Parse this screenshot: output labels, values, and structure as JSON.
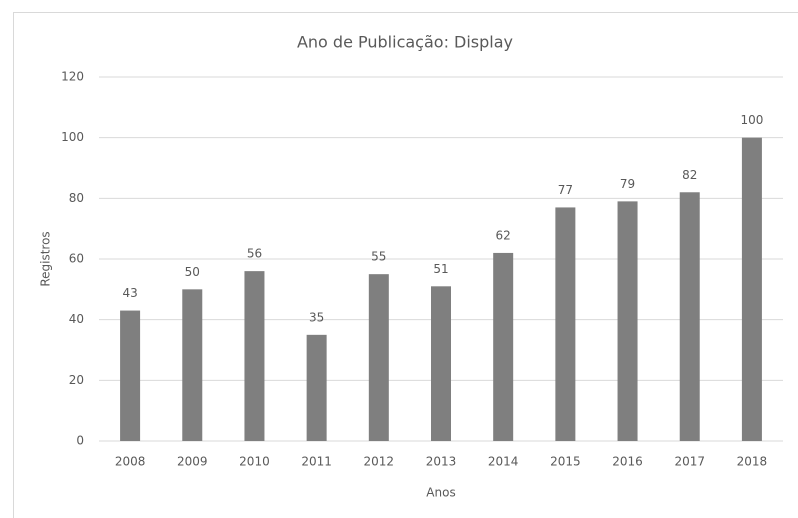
{
  "chart_data": {
    "type": "bar",
    "title": "Ano de Publicação: Display",
    "x_label": "Anos",
    "y_label": "Registros",
    "categories": [
      "2008",
      "2009",
      "2010",
      "2011",
      "2012",
      "2013",
      "2014",
      "2015",
      "2016",
      "2017",
      "2018"
    ],
    "values": [
      43,
      50,
      56,
      35,
      55,
      51,
      62,
      77,
      79,
      82,
      100
    ],
    "color": "#7f7f7f",
    "ylim": [
      0,
      120
    ],
    "yticks": [
      0,
      20,
      40,
      60,
      80,
      100,
      120
    ],
    "grid": true
  }
}
